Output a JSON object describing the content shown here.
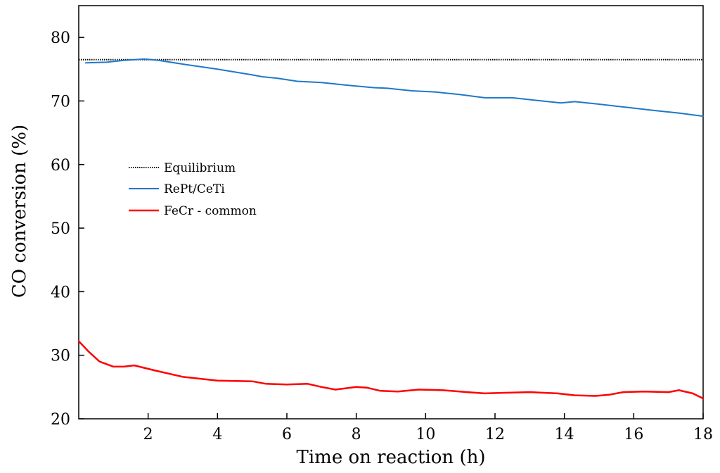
{
  "chart_data": {
    "type": "line",
    "title": "",
    "xlabel": "Time on reaction (h)",
    "ylabel": "CO conversion (%)",
    "xlim": [
      0,
      18
    ],
    "ylim": [
      20,
      85
    ],
    "xticks": [
      2,
      4,
      6,
      8,
      10,
      12,
      14,
      16,
      18
    ],
    "yticks": [
      20,
      30,
      40,
      50,
      60,
      70,
      80
    ],
    "legend_position": "center-left",
    "series": [
      {
        "name": "Equilibrium",
        "color": "#000000",
        "style": "dotted",
        "x": [
          0.0,
          18.0
        ],
        "y": [
          76.5,
          76.5
        ]
      },
      {
        "name": "RePt/CeTi",
        "color": "#1f78c8",
        "style": "solid",
        "x": [
          0.2,
          0.8,
          1.3,
          1.9,
          2.3,
          3.0,
          4.0,
          5.0,
          5.3,
          5.7,
          6.3,
          7.0,
          7.7,
          8.5,
          8.9,
          9.6,
          10.3,
          11.0,
          11.7,
          12.5,
          13.2,
          13.9,
          14.3,
          15.0,
          15.8,
          16.6,
          17.3,
          18.0
        ],
        "y": [
          76.0,
          76.1,
          76.4,
          76.6,
          76.4,
          75.8,
          75.0,
          74.1,
          73.8,
          73.6,
          73.1,
          72.9,
          72.5,
          72.1,
          72.0,
          71.6,
          71.4,
          71.0,
          70.5,
          70.5,
          70.1,
          69.7,
          69.9,
          69.5,
          69.0,
          68.5,
          68.1,
          67.6
        ]
      },
      {
        "name": "FeCr - common",
        "color": "#ff0000",
        "style": "solid",
        "x": [
          0.0,
          0.3,
          0.6,
          1.0,
          1.3,
          1.6,
          2.2,
          3.0,
          4.0,
          5.0,
          5.4,
          6.0,
          6.6,
          7.0,
          7.4,
          8.0,
          8.3,
          8.7,
          9.2,
          9.8,
          10.5,
          11.2,
          11.7,
          12.3,
          13.0,
          13.8,
          14.3,
          14.9,
          15.3,
          15.7,
          16.3,
          17.0,
          17.3,
          17.7,
          18.0
        ],
        "y": [
          32.2,
          30.5,
          29.0,
          28.2,
          28.2,
          28.4,
          27.6,
          26.6,
          26.0,
          25.9,
          25.5,
          25.4,
          25.5,
          25.0,
          24.6,
          25.0,
          24.9,
          24.4,
          24.3,
          24.6,
          24.5,
          24.2,
          24.0,
          24.1,
          24.2,
          24.0,
          23.7,
          23.6,
          23.8,
          24.2,
          24.3,
          24.2,
          24.5,
          24.0,
          23.2
        ]
      }
    ]
  }
}
